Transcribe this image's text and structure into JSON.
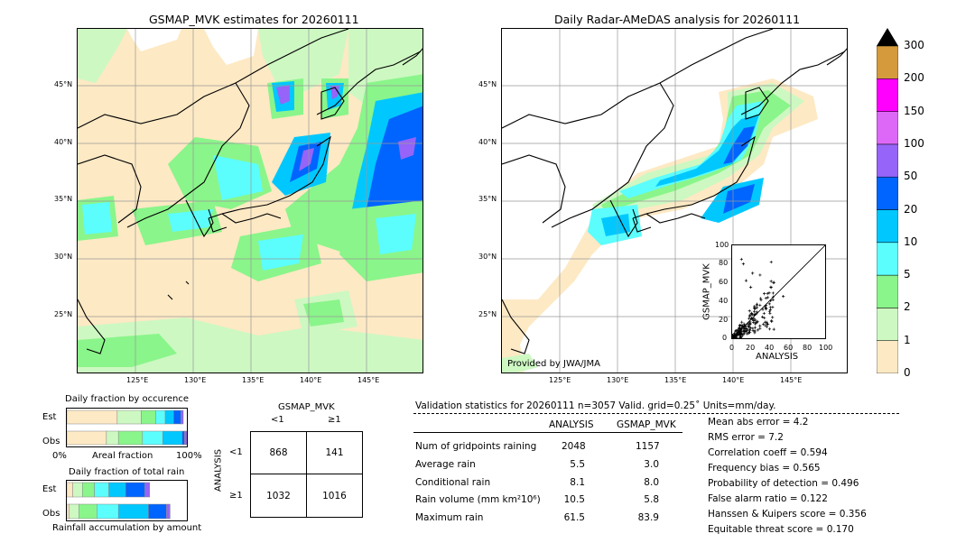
{
  "left_map": {
    "title": "GSMAP_MVK estimates for 20260111",
    "lat_labels": [
      "45°N",
      "40°N",
      "35°N",
      "30°N",
      "25°N"
    ],
    "lon_labels": [
      "125°E",
      "130°E",
      "135°E",
      "140°E",
      "145°E"
    ]
  },
  "right_map": {
    "title": "Daily Radar-AMeDAS analysis for 20260111",
    "lat_labels": [
      "45°N",
      "40°N",
      "35°N",
      "30°N",
      "25°N"
    ],
    "lon_labels": [
      "125°E",
      "130°E",
      "135°E",
      "140°E",
      "145°E"
    ],
    "credit": "Provided by JWA/JMA"
  },
  "colors": {
    "ocean_no_rain": "#fde9c4",
    "c1": "#fde9c4",
    "c2": "#cdf8c2",
    "c5": "#8af58a",
    "c10": "#5cfdfd",
    "c20": "#00c8ff",
    "c50": "#0064ff",
    "c100": "#9664f8",
    "c150": "#dd68f8",
    "c200": "#ff00ff",
    "c300": "#d49a3c"
  },
  "colorbar": {
    "ticks": [
      "0",
      "1",
      "2",
      "5",
      "10",
      "20",
      "50",
      "100",
      "150",
      "200",
      "300"
    ]
  },
  "scatter": {
    "xlabel": "ANALYSIS",
    "ylabel": "GSMAP_MVK",
    "ticks": [
      "0",
      "20",
      "40",
      "60",
      "80",
      "100"
    ]
  },
  "fraction_occurrence": {
    "title": "Daily fraction by occurence",
    "rows": [
      {
        "label": "Est",
        "segments": [
          0.42,
          0.2,
          0.12,
          0.08,
          0.07,
          0.06,
          0.02
        ]
      },
      {
        "label": "Obs",
        "segments": [
          0.33,
          0.1,
          0.2,
          0.17,
          0.16,
          0.02,
          0.02
        ]
      }
    ],
    "axis_left": "0%",
    "axis_mid": "Areal fraction",
    "axis_right": "100%"
  },
  "fraction_rain": {
    "title": "Daily fraction of total rain",
    "rows": [
      {
        "label": "Est",
        "segments": [
          0.05,
          0.08,
          0.1,
          0.12,
          0.14,
          0.16,
          0.04
        ]
      },
      {
        "label": "Obs",
        "segments": [
          0.02,
          0.08,
          0.15,
          0.18,
          0.25,
          0.15,
          0.03
        ]
      }
    ],
    "axis_label": "Rainfall accumulation by amount"
  },
  "contingency": {
    "top_label": "GSMAP_MVK",
    "col_labels": [
      "<1",
      "≥1"
    ],
    "side_label": "ANALYSIS",
    "row_labels": [
      "<1",
      "≥1"
    ],
    "cells": [
      [
        "868",
        "141"
      ],
      [
        "1032",
        "1016"
      ]
    ]
  },
  "validation": {
    "header": "Validation statistics for 20260111  n=3057 Valid. grid=0.25˚ Units=mm/day.",
    "col_analysis": "ANALYSIS",
    "col_gsmap": "GSMAP_MVK",
    "rows": [
      {
        "label": "Num of gridpoints raining",
        "analysis": "2048",
        "gsmap": "1157"
      },
      {
        "label": "Average rain",
        "analysis": "5.5",
        "gsmap": "3.0"
      },
      {
        "label": "Conditional rain",
        "analysis": "8.1",
        "gsmap": "8.0"
      },
      {
        "label": "Rain volume (mm km²10⁶)",
        "analysis": "10.5",
        "gsmap": "5.8"
      },
      {
        "label": "Maximum rain",
        "analysis": "61.5",
        "gsmap": "83.9"
      }
    ],
    "scores": [
      "Mean abs error =    4.2",
      "RMS error =    7.2",
      "Correlation coeff =  0.594",
      "Frequency bias =  0.565",
      "Probability of detection =  0.496",
      "False alarm ratio =  0.122",
      "Hanssen & Kuipers score =  0.356",
      "Equitable threat score =  0.170"
    ]
  }
}
